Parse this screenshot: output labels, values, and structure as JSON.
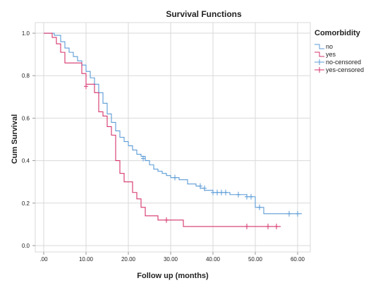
{
  "chart_data": {
    "type": "line",
    "title": "Survival Functions",
    "xlabel": "Follow up (months)",
    "ylabel": "Cum Survival",
    "xlim": [
      -2,
      63
    ],
    "ylim": [
      -0.03,
      1.05
    ],
    "x_ticks": [
      0,
      10,
      20,
      30,
      40,
      50,
      60
    ],
    "x_tick_labels": [
      ".00",
      "10.00",
      "20.00",
      "30.00",
      "40.00",
      "50.00",
      "60.00"
    ],
    "y_ticks": [
      0,
      0.2,
      0.4,
      0.6,
      0.8,
      1.0
    ],
    "y_tick_labels": [
      "0.0",
      "0.2",
      "0.4",
      "0.6",
      "0.8",
      "1.0"
    ],
    "grid": true,
    "legend": {
      "title": "Comorbidity",
      "position": "right",
      "entries": [
        "no",
        "yes",
        "no-censored",
        "yes-censored"
      ]
    },
    "series": [
      {
        "name": "no",
        "color": "#5b9bd5",
        "step": true,
        "x": [
          0,
          2.5,
          4,
          5,
          6,
          7,
          8,
          9,
          10,
          11,
          12,
          13,
          14,
          15,
          16,
          17,
          18,
          19,
          20,
          21,
          22,
          23,
          24,
          25,
          26,
          27,
          28,
          29,
          30,
          32,
          34,
          36,
          37,
          38,
          39,
          40,
          41,
          44,
          45,
          46,
          48,
          50,
          52,
          61
        ],
        "y": [
          1.0,
          0.99,
          0.96,
          0.93,
          0.91,
          0.89,
          0.87,
          0.85,
          0.82,
          0.79,
          0.76,
          0.72,
          0.67,
          0.62,
          0.58,
          0.54,
          0.51,
          0.49,
          0.47,
          0.45,
          0.43,
          0.42,
          0.4,
          0.38,
          0.36,
          0.35,
          0.34,
          0.33,
          0.32,
          0.31,
          0.29,
          0.28,
          0.27,
          0.26,
          0.26,
          0.25,
          0.25,
          0.24,
          0.24,
          0.24,
          0.23,
          0.18,
          0.15,
          0.15
        ]
      },
      {
        "name": "yes",
        "color": "#d6336c",
        "step": true,
        "x": [
          0,
          2,
          3,
          4,
          5,
          9,
          10,
          12,
          13,
          14,
          15,
          16,
          17,
          18,
          19,
          21,
          22,
          23,
          24,
          27,
          33,
          56
        ],
        "y": [
          1.0,
          0.98,
          0.95,
          0.91,
          0.86,
          0.81,
          0.76,
          0.72,
          0.63,
          0.61,
          0.56,
          0.52,
          0.4,
          0.34,
          0.3,
          0.25,
          0.22,
          0.18,
          0.14,
          0.12,
          0.09,
          0.09
        ]
      }
    ],
    "censored": [
      {
        "name": "no-censored",
        "color": "#5b9bd5",
        "x": [
          23.5,
          31,
          37,
          38,
          40,
          41,
          42,
          43,
          46,
          48,
          49,
          51,
          58,
          60
        ],
        "y": [
          0.41,
          0.32,
          0.28,
          0.27,
          0.25,
          0.25,
          0.25,
          0.25,
          0.24,
          0.23,
          0.23,
          0.18,
          0.15,
          0.15
        ]
      },
      {
        "name": "yes-censored",
        "color": "#d6336c",
        "x": [
          10,
          29,
          48,
          53,
          55
        ],
        "y": [
          0.75,
          0.12,
          0.09,
          0.09,
          0.09
        ]
      }
    ]
  }
}
